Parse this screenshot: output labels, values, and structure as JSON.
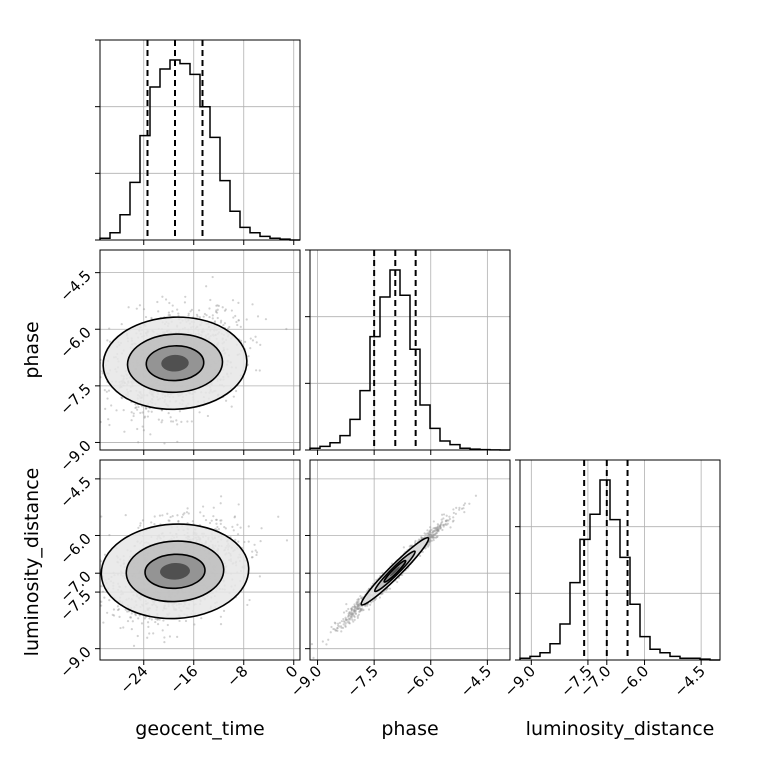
{
  "chart_data": {
    "type": "corner",
    "parameters": [
      {
        "name": "geocent_time",
        "range": [
          -31,
          1
        ],
        "ticks": [
          "-24",
          "-16",
          "-8",
          "0"
        ],
        "tick_values": [
          -24,
          -16,
          -8,
          0
        ],
        "quantiles": [
          -23.4,
          -19.0,
          -14.6
        ],
        "histogram": [
          0.01,
          0.04,
          0.14,
          0.32,
          0.58,
          0.85,
          0.95,
          1.0,
          0.98,
          0.92,
          0.74,
          0.57,
          0.33,
          0.16,
          0.07,
          0.04,
          0.02,
          0.01,
          0.005,
          0.0
        ]
      },
      {
        "name": "phase",
        "range": [
          -9.2,
          -3.9
        ],
        "ticks": [
          "-9.0",
          "-7.5",
          "-6.0",
          "-4.5"
        ],
        "tick_values": [
          -9.0,
          -7.5,
          -6.0,
          -4.5
        ],
        "quantiles": [
          -7.5,
          -6.94,
          -6.4
        ],
        "histogram": [
          0.01,
          0.02,
          0.04,
          0.08,
          0.17,
          0.33,
          0.63,
          0.85,
          1.0,
          0.86,
          0.56,
          0.25,
          0.12,
          0.05,
          0.03,
          0.01,
          0.005,
          0.002,
          0.001,
          0.0
        ]
      },
      {
        "name": "luminosity_distance",
        "range": [
          -9.3,
          -4.0
        ],
        "ticks": [
          "-9.0",
          "-7.5",
          "-7.0",
          "-6.0",
          "-4.5"
        ],
        "tick_values": [
          -9.0,
          -7.5,
          -7.0,
          -6.0,
          -4.5
        ],
        "quantiles": [
          -7.6,
          -7.0,
          -6.45
        ],
        "histogram": [
          0.01,
          0.02,
          0.04,
          0.09,
          0.2,
          0.43,
          0.67,
          0.81,
          1.0,
          0.78,
          0.57,
          0.31,
          0.13,
          0.06,
          0.04,
          0.02,
          0.01,
          0.01,
          0.005,
          0.0
        ]
      }
    ],
    "pairs": [
      {
        "x": "geocent_time",
        "y": "phase",
        "mean": [
          -19,
          -6.9
        ],
        "sigma": [
          5.0,
          0.65
        ],
        "rho": 0.3,
        "levels": [
          {
            "rx": 11.5,
            "ry": 1.22,
            "rot": 0.04
          },
          {
            "rx": 7.6,
            "ry": 0.77,
            "rot": 0.04
          },
          {
            "rx": 4.6,
            "ry": 0.46,
            "rot": 0.04
          },
          {
            "rx": 2.2,
            "ry": 0.22,
            "rot": 0.04
          }
        ]
      },
      {
        "x": "geocent_time",
        "y": "luminosity_distance",
        "mean": [
          -19,
          -6.95
        ],
        "sigma": [
          5.0,
          0.65
        ],
        "rho": 0.33,
        "levels": [
          {
            "rx": 11.8,
            "ry": 1.25,
            "rot": 0.05
          },
          {
            "rx": 7.8,
            "ry": 0.8,
            "rot": 0.05
          },
          {
            "rx": 4.8,
            "ry": 0.45,
            "rot": 0.05
          },
          {
            "rx": 2.4,
            "ry": 0.22,
            "rot": 0.05
          }
        ]
      },
      {
        "x": "phase",
        "y": "luminosity_distance",
        "mean": [
          -6.95,
          -6.95
        ],
        "sigma": [
          0.65,
          0.65
        ],
        "rho": 0.985,
        "levels": [
          {
            "rx": 1.25,
            "ry": 0.16,
            "rot": 0.785
          },
          {
            "rx": 0.75,
            "ry": 0.1,
            "rot": 0.785
          },
          {
            "rx": 0.4,
            "ry": 0.06,
            "rot": 0.785
          },
          {
            "rx": 0.18,
            "ry": 0.03,
            "rot": 0.785
          }
        ]
      }
    ],
    "grid": true,
    "x_axis_labels": [
      "geocent_time",
      "phase",
      "luminosity_distance"
    ],
    "y_axis_labels": [
      "phase",
      "luminosity_distance"
    ]
  }
}
